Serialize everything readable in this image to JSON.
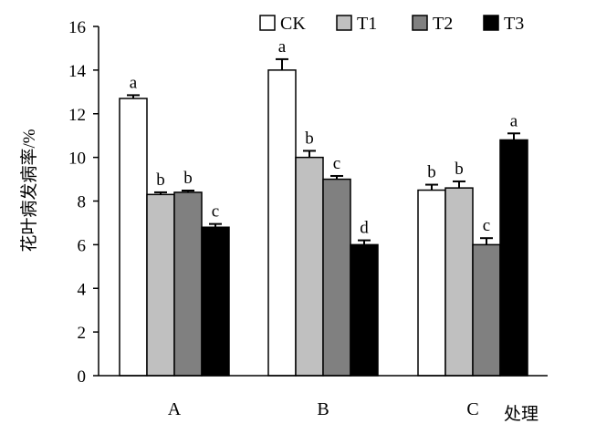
{
  "chart_data": {
    "type": "bar",
    "title": "",
    "xlabel": "处理",
    "ylabel": "花叶病发病率/%",
    "ylim": [
      0,
      16
    ],
    "yticks": [
      0,
      2,
      4,
      6,
      8,
      10,
      12,
      14,
      16
    ],
    "categories": [
      "A",
      "B",
      "C"
    ],
    "legend_position": "top",
    "grid": false,
    "series": [
      {
        "name": "CK",
        "color": "#ffffff",
        "values": [
          12.7,
          14.0,
          8.5
        ],
        "errors": [
          0.15,
          0.5,
          0.25
        ],
        "labels": [
          "a",
          "a",
          "b"
        ]
      },
      {
        "name": "T1",
        "color": "#c0c0c0",
        "values": [
          8.3,
          10.0,
          8.6
        ],
        "errors": [
          0.1,
          0.3,
          0.3
        ],
        "labels": [
          "b",
          "b",
          "b"
        ]
      },
      {
        "name": "T2",
        "color": "#808080",
        "values": [
          8.4,
          9.0,
          6.0
        ],
        "errors": [
          0.08,
          0.15,
          0.3
        ],
        "labels": [
          "b",
          "c",
          "c"
        ]
      },
      {
        "name": "T3",
        "color": "#000000",
        "values": [
          6.8,
          6.0,
          10.8
        ],
        "errors": [
          0.15,
          0.2,
          0.3
        ],
        "labels": [
          "c",
          "d",
          "a"
        ]
      }
    ]
  }
}
